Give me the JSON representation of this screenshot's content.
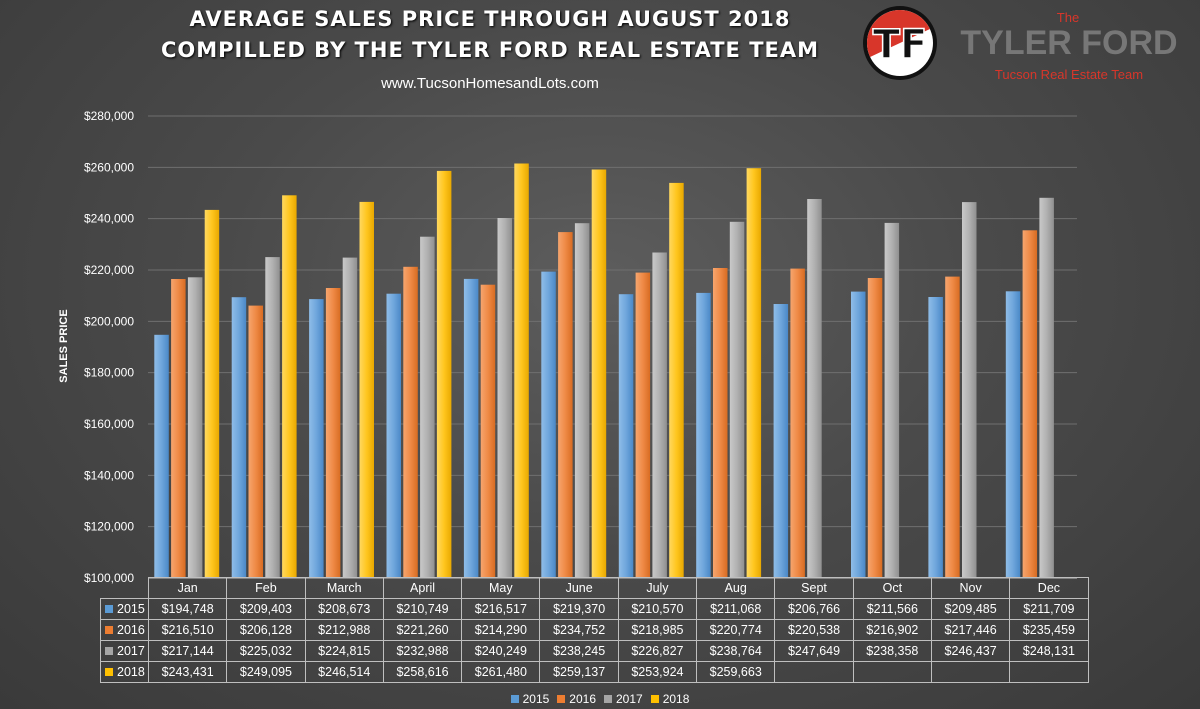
{
  "header": {
    "title_line1": "AVERAGE SALES PRICE THROUGH AUGUST 2018",
    "title_line2": "COMPILLED BY THE TYLER FORD REAL ESTATE TEAM",
    "website": "www.TucsonHomesandLots.com"
  },
  "logo": {
    "badge_text": "TF",
    "the": "The",
    "name": "TYLER FORD",
    "subtitle": "Tucson Real Estate Team",
    "red": "#d8362a"
  },
  "chart_data": {
    "type": "bar",
    "title": "AVERAGE SALES PRICE THROUGH AUGUST 2018",
    "subtitle": "COMPILLED BY THE TYLER FORD REAL ESTATE TEAM",
    "xlabel": "",
    "ylabel": "SALES PRICE",
    "ylim": [
      100000,
      280000
    ],
    "yticks": [
      100000,
      120000,
      140000,
      160000,
      180000,
      200000,
      220000,
      240000,
      260000,
      280000
    ],
    "ytick_labels": [
      "$100,000",
      "$120,000",
      "$140,000",
      "$160,000",
      "$180,000",
      "$200,000",
      "$220,000",
      "$240,000",
      "$260,000",
      "$280,000"
    ],
    "grid": true,
    "legend": "bottom",
    "categories": [
      "Jan",
      "Feb",
      "March",
      "April",
      "May",
      "June",
      "July",
      "Aug",
      "Sept",
      "Oct",
      "Nov",
      "Dec"
    ],
    "series": [
      {
        "name": "2015",
        "color": "#5b9bd5",
        "values": [
          194748,
          209403,
          208673,
          210749,
          216517,
          219370,
          210570,
          211068,
          206766,
          211566,
          209485,
          211709
        ],
        "labels": [
          "$194,748",
          "$209,403",
          "$208,673",
          "$210,749",
          "$216,517",
          "$219,370",
          "$210,570",
          "$211,068",
          "$206,766",
          "$211,566",
          "$209,485",
          "$211,709"
        ]
      },
      {
        "name": "2016",
        "color": "#ed7d31",
        "values": [
          216510,
          206128,
          212988,
          221260,
          214290,
          234752,
          218985,
          220774,
          220538,
          216902,
          217446,
          235459
        ],
        "labels": [
          "$216,510",
          "$206,128",
          "$212,988",
          "$221,260",
          "$214,290",
          "$234,752",
          "$218,985",
          "$220,774",
          "$220,538",
          "$216,902",
          "$217,446",
          "$235,459"
        ]
      },
      {
        "name": "2017",
        "color": "#a5a5a5",
        "values": [
          217144,
          225032,
          224815,
          232988,
          240249,
          238245,
          226827,
          238764,
          247649,
          238358,
          246437,
          248131
        ],
        "labels": [
          "$217,144",
          "$225,032",
          "$224,815",
          "$232,988",
          "$240,249",
          "$238,245",
          "$226,827",
          "$238,764",
          "$247,649",
          "$238,358",
          "$246,437",
          "$248,131"
        ]
      },
      {
        "name": "2018",
        "color": "#ffc000",
        "values": [
          243431,
          249095,
          246514,
          258616,
          261480,
          259137,
          253924,
          259663,
          null,
          null,
          null,
          null
        ],
        "labels": [
          "$243,431",
          "$249,095",
          "$246,514",
          "$258,616",
          "$261,480",
          "$259,137",
          "$253,924",
          "$259,663",
          "",
          "",
          "",
          ""
        ]
      }
    ]
  }
}
